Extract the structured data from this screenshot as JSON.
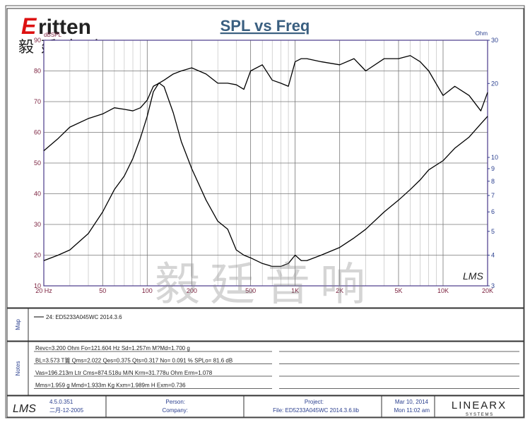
{
  "header": {
    "brand": "ritten",
    "brand_initial": "E",
    "brand_cn": "毅廷音响",
    "watermark": "毅廷音响"
  },
  "chart_data": {
    "type": "line",
    "title": "SPL vs Freq",
    "y_label": "dBSPL",
    "y2_label": "Ohm",
    "plot_logo": "LMS",
    "xscale": "log",
    "y2scale": "log",
    "grid": true,
    "xlim": [
      20,
      20000
    ],
    "xticks": [
      {
        "value": 20,
        "label": "20 Hz"
      },
      50,
      100,
      200,
      500,
      {
        "value": 1000,
        "label": "1K"
      },
      {
        "value": 2000,
        "label": "2K"
      },
      {
        "value": 5000,
        "label": "5K"
      },
      {
        "value": 10000,
        "label": "10K"
      },
      {
        "value": 20000,
        "label": "20K"
      }
    ],
    "xgrid_minor": [
      30,
      40,
      60,
      70,
      80,
      90,
      300,
      400,
      600,
      700,
      800,
      900,
      3000,
      4000,
      6000,
      7000,
      8000,
      9000
    ],
    "ylim": [
      10,
      90
    ],
    "yticks": [
      10,
      20,
      30,
      40,
      50,
      60,
      70,
      80,
      90
    ],
    "y2lim": [
      3,
      30
    ],
    "y2ticks": [
      3,
      4,
      5,
      6,
      7,
      8,
      9,
      10,
      20,
      30
    ],
    "x": [
      20,
      25,
      30,
      40,
      50,
      60,
      70,
      80,
      90,
      100,
      110,
      120,
      130,
      150,
      170,
      200,
      250,
      300,
      350,
      400,
      450,
      500,
      600,
      700,
      800,
      900,
      1000,
      1100,
      1200,
      1500,
      2000,
      2500,
      3000,
      4000,
      5000,
      6000,
      7000,
      8000,
      10000,
      12000,
      15000,
      18000,
      20000
    ],
    "series": [
      {
        "name": "24: ED5233A045WC   2014.3.6",
        "color": "#000000",
        "values": [
          54,
          58,
          61.7,
          64.5,
          66,
          68,
          67.5,
          67,
          68,
          70.5,
          75,
          76,
          77,
          79,
          80,
          81,
          79,
          76,
          76,
          75.5,
          74,
          80,
          82,
          77,
          76,
          75,
          83,
          84,
          84,
          83,
          82,
          84,
          80,
          84,
          84,
          85,
          83,
          80,
          72,
          75,
          72,
          67,
          73
        ]
      },
      {
        "color": "#000000",
        "axis": "y2",
        "values": [
          3.8,
          4.0,
          4.2,
          4.9,
          6.0,
          7.4,
          8.4,
          9.9,
          12.0,
          14.7,
          18.5,
          20.1,
          19.4,
          15.2,
          11.6,
          9.0,
          6.7,
          5.5,
          5.1,
          4.2,
          4.0,
          3.9,
          3.7,
          3.6,
          3.6,
          3.7,
          4.0,
          3.8,
          3.8,
          4.0,
          4.3,
          4.7,
          5.1,
          6.0,
          6.7,
          7.4,
          8.1,
          8.9,
          9.7,
          10.9,
          12.1,
          13.7,
          14.7
        ]
      }
    ]
  },
  "panels": {
    "map_label": "Map",
    "notes_label": "Notes",
    "notes": [
      "Revc=3.200 Ohm  Fo=121.604 Hz  Sd=1.257m M?Md=1.700 g",
      "BL=3.573 T籥  Qms=2.022  Qes=0.375  Qts=0.317  No= 0.091 %  SPLo= 81.6 dB",
      "Vas=196.213m Ltr  Cms=874.518u M/N  Krm=31.778u Ohm  Erm=1.078",
      "Mms=1.959 g  Mmd=1.933m Kg  Kxm=1.989m H  Exm=0.736"
    ]
  },
  "footer": {
    "logo": "LMS",
    "version": "4.5.0.351",
    "build_date": "二月-12-2005",
    "person": "Person:",
    "company": "Company:",
    "project": "Project:",
    "file": "File: ED5233A045WC  2014.3.6.lib",
    "date": "Mar 10, 2014",
    "time": "Mon 11:02 am",
    "vendor": "LINEARX",
    "vendor_sub": "S Y S T E M S"
  }
}
